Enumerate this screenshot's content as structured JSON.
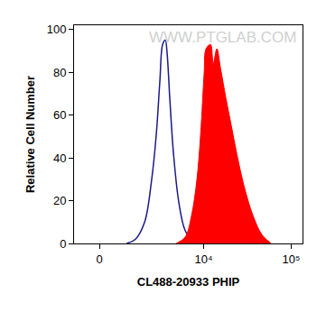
{
  "chart_data": {
    "type": "line",
    "x_label": "CL488-20933 PHIP",
    "y_label": "Relative Cell Number",
    "annotations": [
      "WWW.PTGLAB.COM"
    ],
    "xlim": [
      -930,
      135000
    ],
    "xticks": [
      0,
      {
        "value": 10000,
        "label": "10⁴"
      },
      {
        "value": 100000,
        "label": "10⁵"
      }
    ],
    "ylim": [
      0,
      102
    ],
    "yticks": [
      0,
      20,
      40,
      60,
      80,
      100
    ],
    "grid": false,
    "series": [
      {
        "type": "line",
        "color": "#1a1a8c",
        "x": [
          1006,
          1428,
          1936,
          2405,
          2753,
          3052,
          3303,
          3560,
          3740,
          4027,
          4463,
          5168,
          6128,
          7825
        ],
        "values": [
          0,
          2,
          10,
          30,
          51,
          76,
          93,
          95,
          89,
          68,
          42,
          19,
          6,
          0
        ]
      },
      {
        "type": "area",
        "color": "#ff0000",
        "x": [
          4806,
          6128,
          7255,
          8385,
          9243,
          10166,
          10673,
          12012,
          12909,
          14196,
          15626,
          18005,
          20787,
          23972,
          28951,
          36777,
          46618,
          59150
        ],
        "values": [
          0,
          3,
          13,
          30,
          51,
          80,
          91,
          93,
          84,
          91,
          82,
          68,
          55,
          42,
          27,
          13,
          4,
          0
        ]
      }
    ]
  }
}
